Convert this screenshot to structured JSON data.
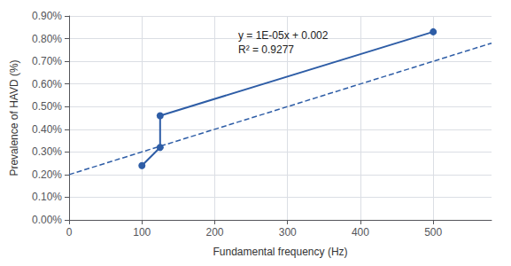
{
  "chart_data": {
    "type": "line",
    "xlabel": "Fundamental frequency (Hz)",
    "ylabel": "Prevalence of HAVD (%)",
    "annotations": [
      "y = 1E-05x + 0.002",
      "R² = 0.9277"
    ],
    "series": [
      {
        "type": "line",
        "x": [
          100,
          125,
          125,
          500
        ],
        "values": [
          0.0024,
          0.0032,
          0.0046,
          0.0083
        ],
        "color": "#2E5DA6",
        "marker": "circle",
        "line_style": "solid"
      },
      {
        "type": "line",
        "x": [
          0,
          580
        ],
        "values": [
          0.002,
          0.0078
        ],
        "color": "#2E5DA6",
        "line_style": "dashed"
      }
    ],
    "xlim": [
      0,
      580
    ],
    "xticks": [
      0,
      100,
      200,
      300,
      400,
      500
    ],
    "ylim": [
      0,
      0.009
    ],
    "yticks": [
      {
        "value": 0.0,
        "label": "0.00%"
      },
      {
        "value": 0.001,
        "label": "0.10%"
      },
      {
        "value": 0.002,
        "label": "0.20%"
      },
      {
        "value": 0.003,
        "label": "0.30%"
      },
      {
        "value": 0.004,
        "label": "0.40%"
      },
      {
        "value": 0.005,
        "label": "0.50%"
      },
      {
        "value": 0.006,
        "label": "0.60%"
      },
      {
        "value": 0.007,
        "label": "0.70%"
      },
      {
        "value": 0.008,
        "label": "0.80%"
      },
      {
        "value": 0.009,
        "label": "0.90%"
      }
    ],
    "grid": true
  }
}
